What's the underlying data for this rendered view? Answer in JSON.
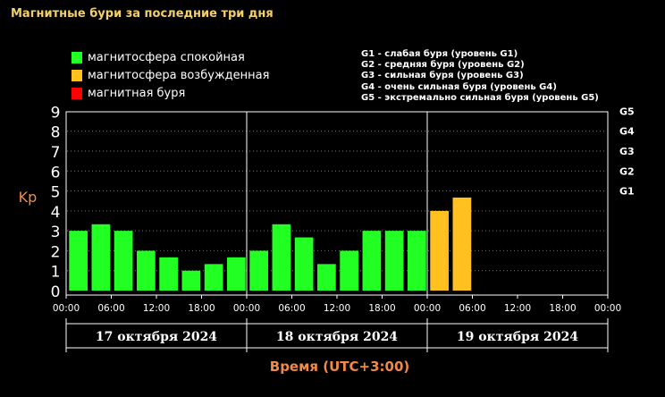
{
  "title": "Магнитные бури за последние три дня",
  "legend": [
    {
      "label": "магнитосфера спокойная",
      "color": "#22ff22"
    },
    {
      "label": "магнитосфера возбужденная",
      "color": "#ffc020"
    },
    {
      "label": "магнитная буря",
      "color": "#ff0000"
    }
  ],
  "g_legend": [
    "G1 - слабая буря (уровень G1)",
    "G2 - средняя буря (уровень G2)",
    "G3 - сильная буря (уровень G3)",
    "G4 - очень сильная буря (уровень G4)",
    "G5 - экстремально сильная буря (уровень G5)"
  ],
  "chart_data": {
    "type": "bar",
    "ylabel": "Kp",
    "xlabel": "Время (UTC+3:00)",
    "ylim": [
      0,
      9
    ],
    "y_ticks": [
      "0",
      "1",
      "2",
      "3",
      "4",
      "5",
      "6",
      "7",
      "8",
      "9"
    ],
    "g_ticks": [
      {
        "label": "G1",
        "kp": 5
      },
      {
        "label": "G2",
        "kp": 6
      },
      {
        "label": "G3",
        "kp": 7
      },
      {
        "label": "G4",
        "kp": 8
      },
      {
        "label": "G5",
        "kp": 9
      }
    ],
    "days": [
      "17 октября 2024",
      "18 октября 2024",
      "19 октября 2024"
    ],
    "time_ticks": [
      "00:00",
      "06:00",
      "12:00",
      "18:00",
      "00:00",
      "06:00",
      "12:00",
      "18:00",
      "00:00",
      "06:00",
      "12:00",
      "18:00",
      "00:00"
    ],
    "bars_per_day": 8,
    "values": [
      3.0,
      3.33,
      3.0,
      2.0,
      1.67,
      1.0,
      1.33,
      1.67,
      2.0,
      3.33,
      2.67,
      1.33,
      2.0,
      3.0,
      3.0,
      3.0,
      4.0,
      4.67
    ],
    "colors": [
      "#22ff22",
      "#22ff22",
      "#22ff22",
      "#22ff22",
      "#22ff22",
      "#22ff22",
      "#22ff22",
      "#22ff22",
      "#22ff22",
      "#22ff22",
      "#22ff22",
      "#22ff22",
      "#22ff22",
      "#22ff22",
      "#22ff22",
      "#22ff22",
      "#ffc020",
      "#ffc020"
    ],
    "grid": true
  },
  "style": {
    "accent": "#f08a4a",
    "title_color": "#f3d06a"
  }
}
